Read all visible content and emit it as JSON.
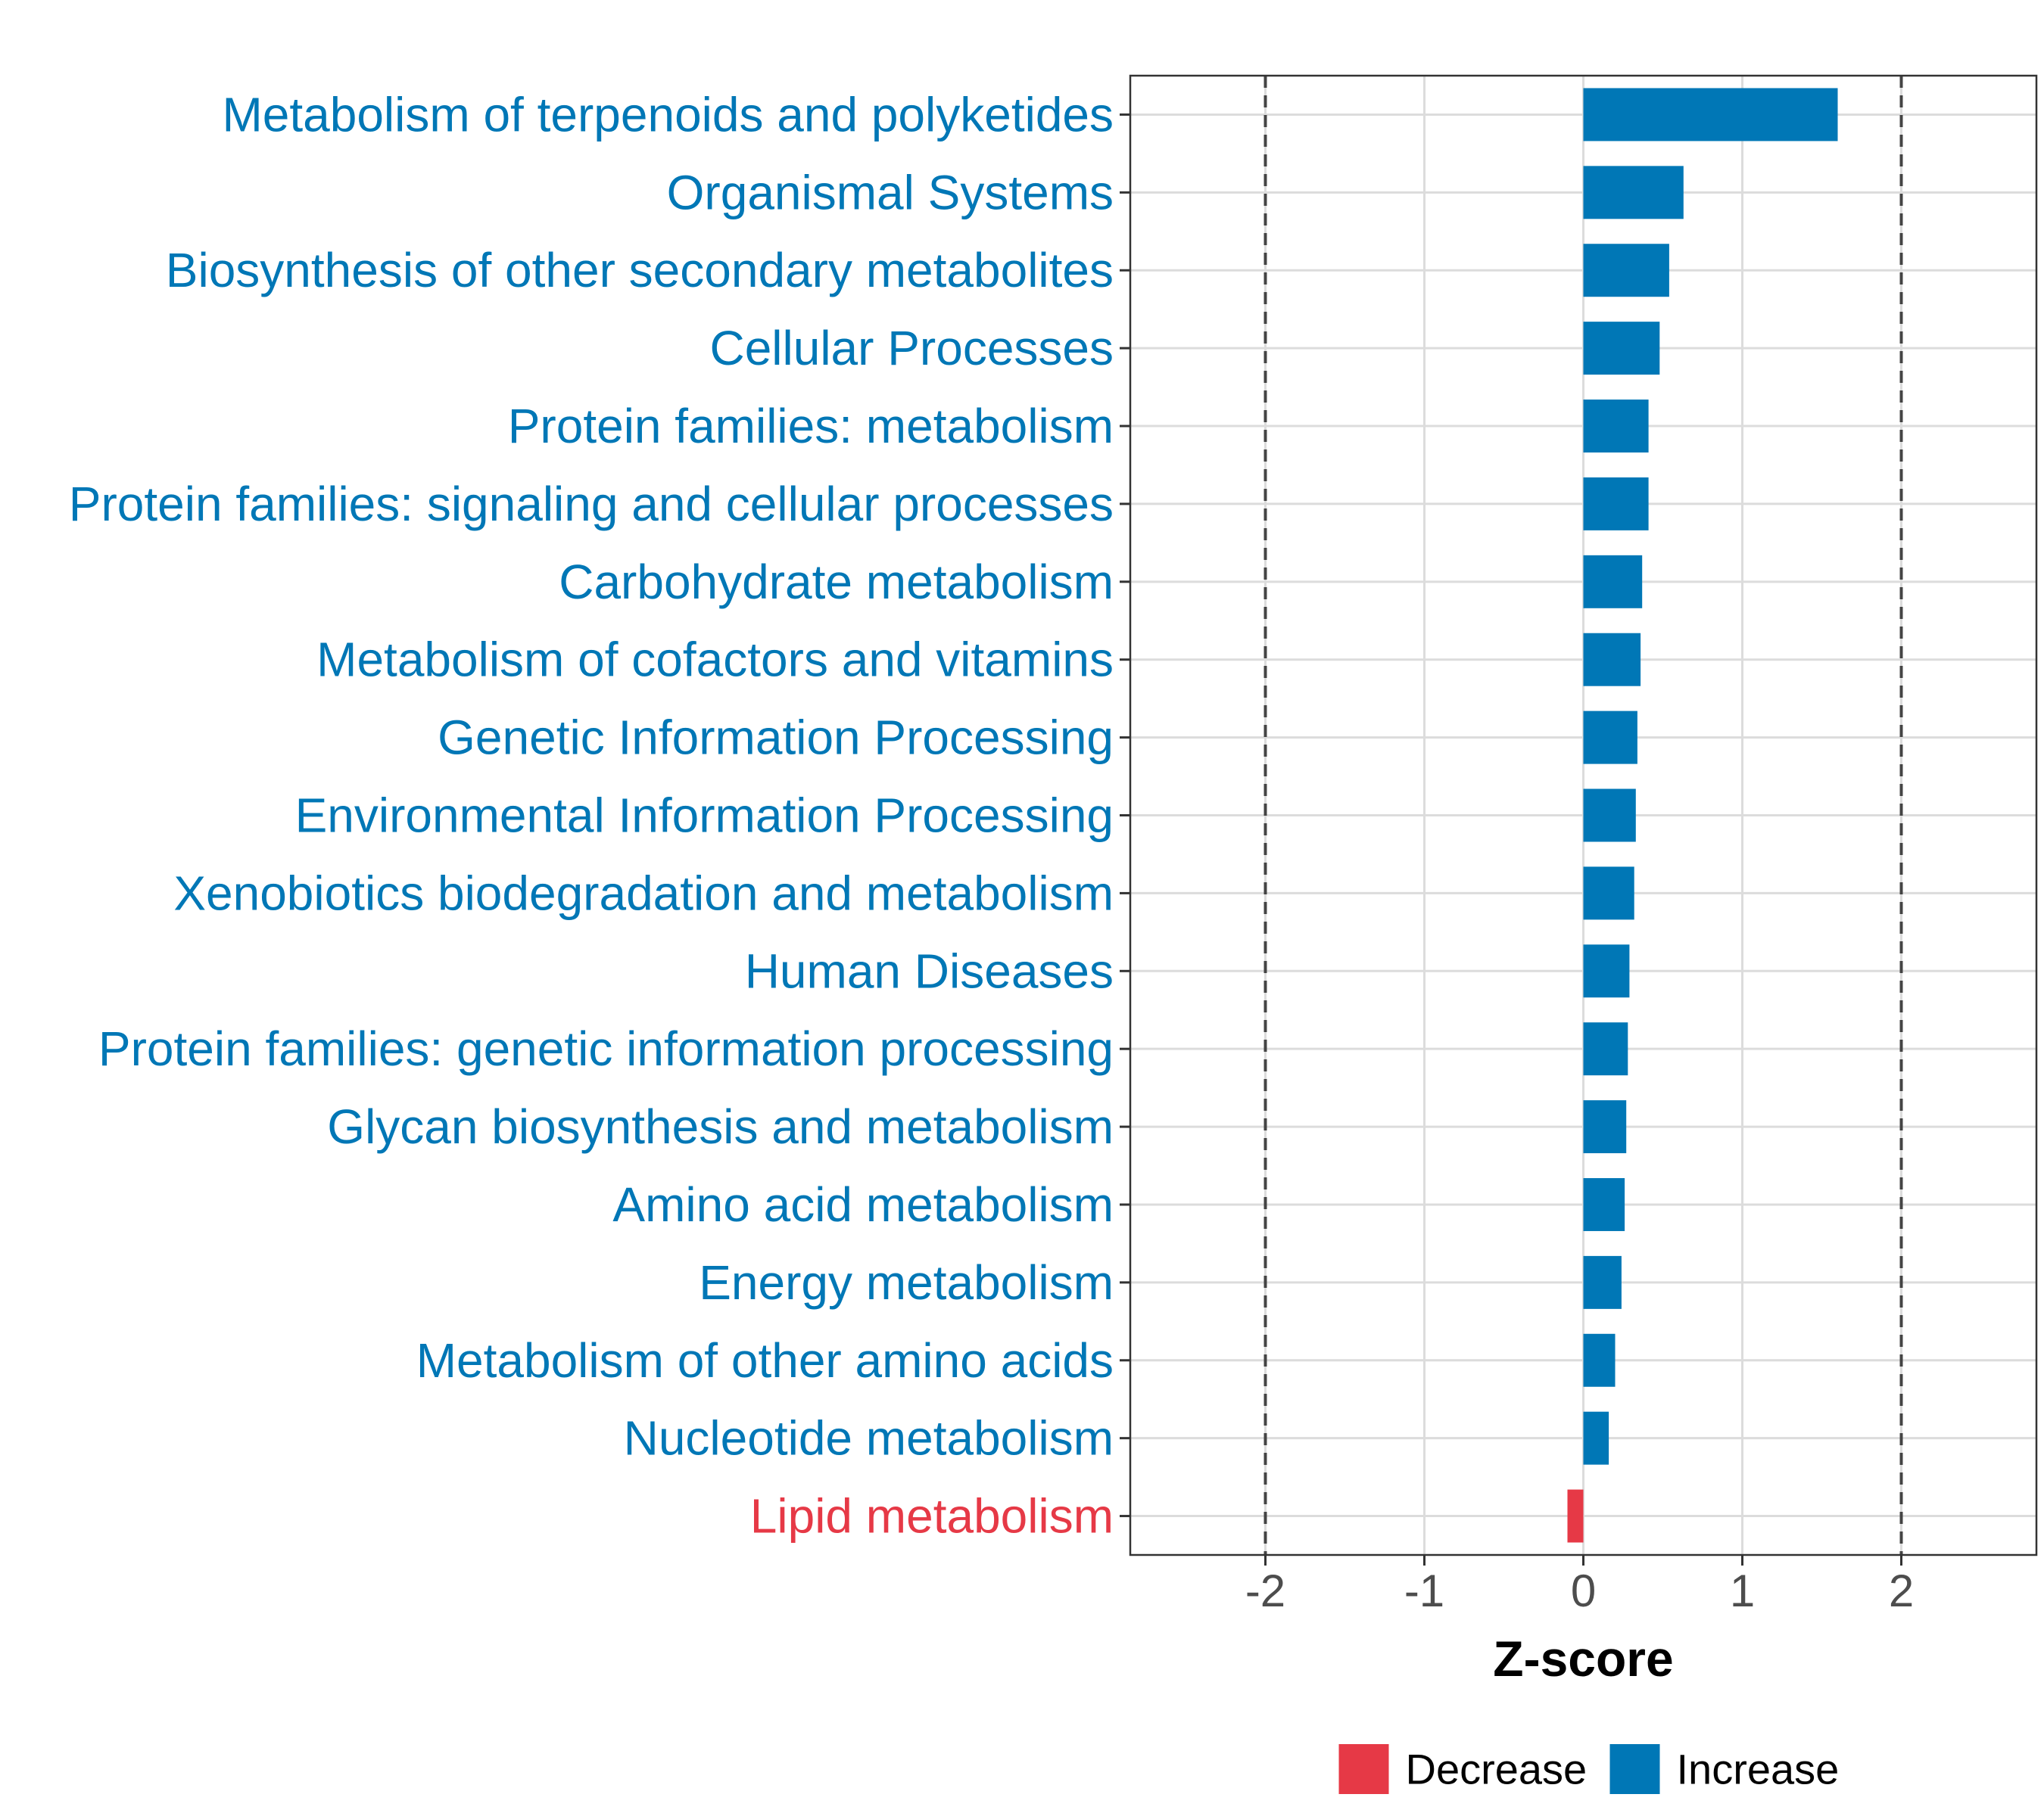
{
  "chart_data": {
    "type": "bar",
    "orientation": "horizontal",
    "title": "",
    "xlabel": "Z-score",
    "ylabel": "",
    "xlim": [
      -2.85,
      2.85
    ],
    "xticks": [
      -2,
      -1,
      0,
      1,
      2
    ],
    "xtick_labels": [
      "-2",
      "-1",
      "0",
      "1",
      "2"
    ],
    "reference_lines": [
      -2,
      2
    ],
    "grid": true,
    "colors": {
      "Decrease": "#e63946",
      "Increase": "#0077b6"
    },
    "categories": [
      "Metabolism of terpenoids and polyketides",
      "Organismal Systems",
      "Biosynthesis of other secondary metabolites",
      "Cellular Processes",
      "Protein families: metabolism",
      "Protein families: signaling and cellular processes",
      "Carbohydrate metabolism",
      "Metabolism of cofactors and vitamins",
      "Genetic Information Processing",
      "Environmental Information Processing",
      "Xenobiotics biodegradation and metabolism",
      "Human Diseases",
      "Protein families: genetic information processing",
      "Glycan biosynthesis and metabolism",
      "Amino acid metabolism",
      "Energy metabolism",
      "Metabolism of other amino acids",
      "Nucleotide metabolism",
      "Lipid metabolism"
    ],
    "values": [
      1.6,
      0.63,
      0.54,
      0.48,
      0.41,
      0.41,
      0.37,
      0.36,
      0.34,
      0.33,
      0.32,
      0.29,
      0.28,
      0.27,
      0.26,
      0.24,
      0.2,
      0.16,
      -0.1
    ],
    "groups": [
      "Increase",
      "Increase",
      "Increase",
      "Increase",
      "Increase",
      "Increase",
      "Increase",
      "Increase",
      "Increase",
      "Increase",
      "Increase",
      "Increase",
      "Increase",
      "Increase",
      "Increase",
      "Increase",
      "Increase",
      "Increase",
      "Decrease"
    ],
    "legend": {
      "position": "bottom",
      "entries": [
        "Decrease",
        "Increase"
      ]
    }
  }
}
